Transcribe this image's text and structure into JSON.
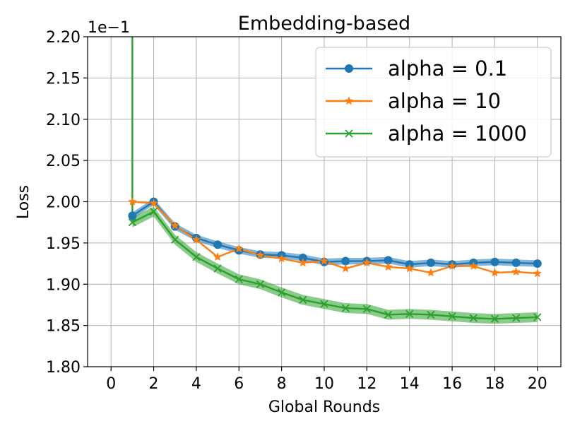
{
  "chart_data": {
    "type": "line",
    "title": "Embedding-based",
    "xlabel": "Global Rounds",
    "ylabel": "Loss",
    "y_offset_label": "1e−1",
    "xlim": [
      -1.1,
      21.1
    ],
    "ylim": [
      1.8,
      2.2
    ],
    "xticks": [
      0,
      2,
      4,
      6,
      8,
      10,
      12,
      14,
      16,
      18,
      20
    ],
    "xtick_labels": [
      "0",
      "2",
      "4",
      "6",
      "8",
      "10",
      "12",
      "14",
      "16",
      "18",
      "20"
    ],
    "yticks": [
      1.8,
      1.85,
      1.9,
      1.95,
      2.0,
      2.05,
      2.1,
      2.15,
      2.2
    ],
    "ytick_labels": [
      "1.80",
      "1.85",
      "1.90",
      "1.95",
      "2.00",
      "2.05",
      "2.10",
      "2.15",
      "2.20"
    ],
    "grid": true,
    "legend_position": "top-right",
    "x": [
      1,
      2,
      3,
      4,
      5,
      6,
      7,
      8,
      9,
      10,
      11,
      12,
      13,
      14,
      15,
      16,
      17,
      18,
      19,
      20
    ],
    "series": [
      {
        "name": "alpha = 0.1",
        "color": "#1f77b4",
        "marker": "circle",
        "values": [
          1.983,
          2.0,
          1.97,
          1.956,
          1.948,
          1.941,
          1.936,
          1.935,
          1.932,
          1.927,
          1.928,
          1.928,
          1.929,
          1.924,
          1.926,
          1.924,
          1.926,
          1.927,
          1.926,
          1.925
        ],
        "band": 0.004
      },
      {
        "name": "alpha = 10",
        "color": "#ff7f0e",
        "marker": "star",
        "values": [
          2.0,
          1.998,
          1.971,
          1.954,
          1.933,
          1.943,
          1.935,
          1.931,
          1.926,
          1.928,
          1.919,
          1.926,
          1.921,
          1.919,
          1.914,
          1.922,
          1.922,
          1.914,
          1.915,
          1.913
        ],
        "band": 0.0
      },
      {
        "name": "alpha = 1000",
        "color": "#2ca02c",
        "marker": "x",
        "start_value": 2.2,
        "values": [
          1.975,
          1.988,
          1.954,
          1.933,
          1.919,
          1.906,
          1.9,
          1.89,
          1.881,
          1.876,
          1.871,
          1.87,
          1.863,
          1.864,
          1.863,
          1.861,
          1.859,
          1.858,
          1.859,
          1.86
        ],
        "band": 0.006
      }
    ]
  }
}
